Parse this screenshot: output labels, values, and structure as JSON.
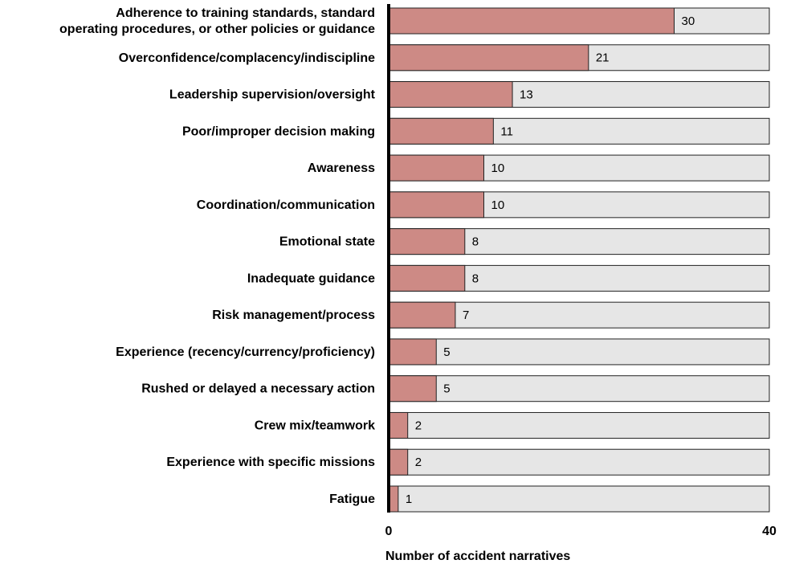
{
  "chart_data": {
    "type": "bar",
    "orientation": "horizontal",
    "categories": [
      "Adherence to training standards, standard\noperating procedures, or other policies or guidance",
      "Overconfidence/complacency/indiscipline",
      "Leadership supervision/oversight",
      "Poor/improper decision making",
      "Awareness",
      "Coordination/communication",
      "Emotional state",
      "Inadequate guidance",
      "Risk management/process",
      "Experience (recency/currency/proficiency)",
      "Rushed or delayed a necessary action",
      "Crew mix/teamwork",
      "Experience with specific missions",
      "Fatigue"
    ],
    "values": [
      30,
      21,
      13,
      11,
      10,
      10,
      8,
      8,
      7,
      5,
      5,
      2,
      2,
      1
    ],
    "color": "#cd8a85",
    "track_color": "#e6e6e6",
    "xlim": [
      0,
      40
    ],
    "xticks": [
      0,
      40
    ],
    "xlabel": "Number of accident narratives"
  }
}
